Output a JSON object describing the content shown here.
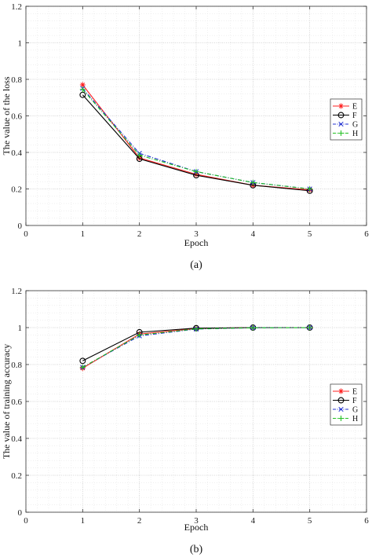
{
  "chart_data": [
    {
      "type": "line",
      "panel_label": "(a)",
      "xlabel": "Epoch",
      "ylabel": "The value of the loss",
      "xlim": [
        0,
        6
      ],
      "ylim": [
        0,
        1.2
      ],
      "x_ticks": [
        0,
        1,
        2,
        3,
        4,
        5,
        6
      ],
      "y_ticks": [
        0,
        0.2,
        0.4,
        0.6,
        0.8,
        1,
        1.2
      ],
      "grid": true,
      "legend_position": "right",
      "x": [
        1,
        2,
        3,
        4,
        5
      ],
      "series": [
        {
          "name": "E",
          "color": "#ff2020",
          "marker": "star",
          "dash": "solid",
          "values": [
            0.77,
            0.37,
            0.28,
            0.22,
            0.195
          ]
        },
        {
          "name": "F",
          "color": "#000000",
          "marker": "circle",
          "dash": "solid",
          "values": [
            0.715,
            0.365,
            0.275,
            0.22,
            0.19
          ]
        },
        {
          "name": "G",
          "color": "#2030d0",
          "marker": "x",
          "dash": "dashdot",
          "values": [
            0.75,
            0.395,
            0.295,
            0.235,
            0.2
          ]
        },
        {
          "name": "H",
          "color": "#20c020",
          "marker": "plus",
          "dash": "dashdot",
          "values": [
            0.745,
            0.385,
            0.295,
            0.235,
            0.2
          ]
        }
      ]
    },
    {
      "type": "line",
      "panel_label": "(b)",
      "xlabel": "Epoch",
      "ylabel": "The value of training accuracy",
      "xlim": [
        0,
        6
      ],
      "ylim": [
        0,
        1.2
      ],
      "x_ticks": [
        0,
        1,
        2,
        3,
        4,
        5,
        6
      ],
      "y_ticks": [
        0,
        0.2,
        0.4,
        0.6,
        0.8,
        1,
        1.2
      ],
      "grid": true,
      "legend_position": "right",
      "x": [
        1,
        2,
        3,
        4,
        5
      ],
      "series": [
        {
          "name": "E",
          "color": "#ff2020",
          "marker": "star",
          "dash": "solid",
          "values": [
            0.78,
            0.965,
            0.995,
            1.0,
            1.0
          ]
        },
        {
          "name": "F",
          "color": "#000000",
          "marker": "circle",
          "dash": "solid",
          "values": [
            0.82,
            0.975,
            0.997,
            1.0,
            1.0
          ]
        },
        {
          "name": "G",
          "color": "#2030d0",
          "marker": "x",
          "dash": "dashdot",
          "values": [
            0.785,
            0.955,
            0.992,
            0.999,
            1.0
          ]
        },
        {
          "name": "H",
          "color": "#20c020",
          "marker": "plus",
          "dash": "dashdot",
          "values": [
            0.785,
            0.96,
            0.993,
            0.999,
            1.0
          ]
        }
      ]
    }
  ]
}
